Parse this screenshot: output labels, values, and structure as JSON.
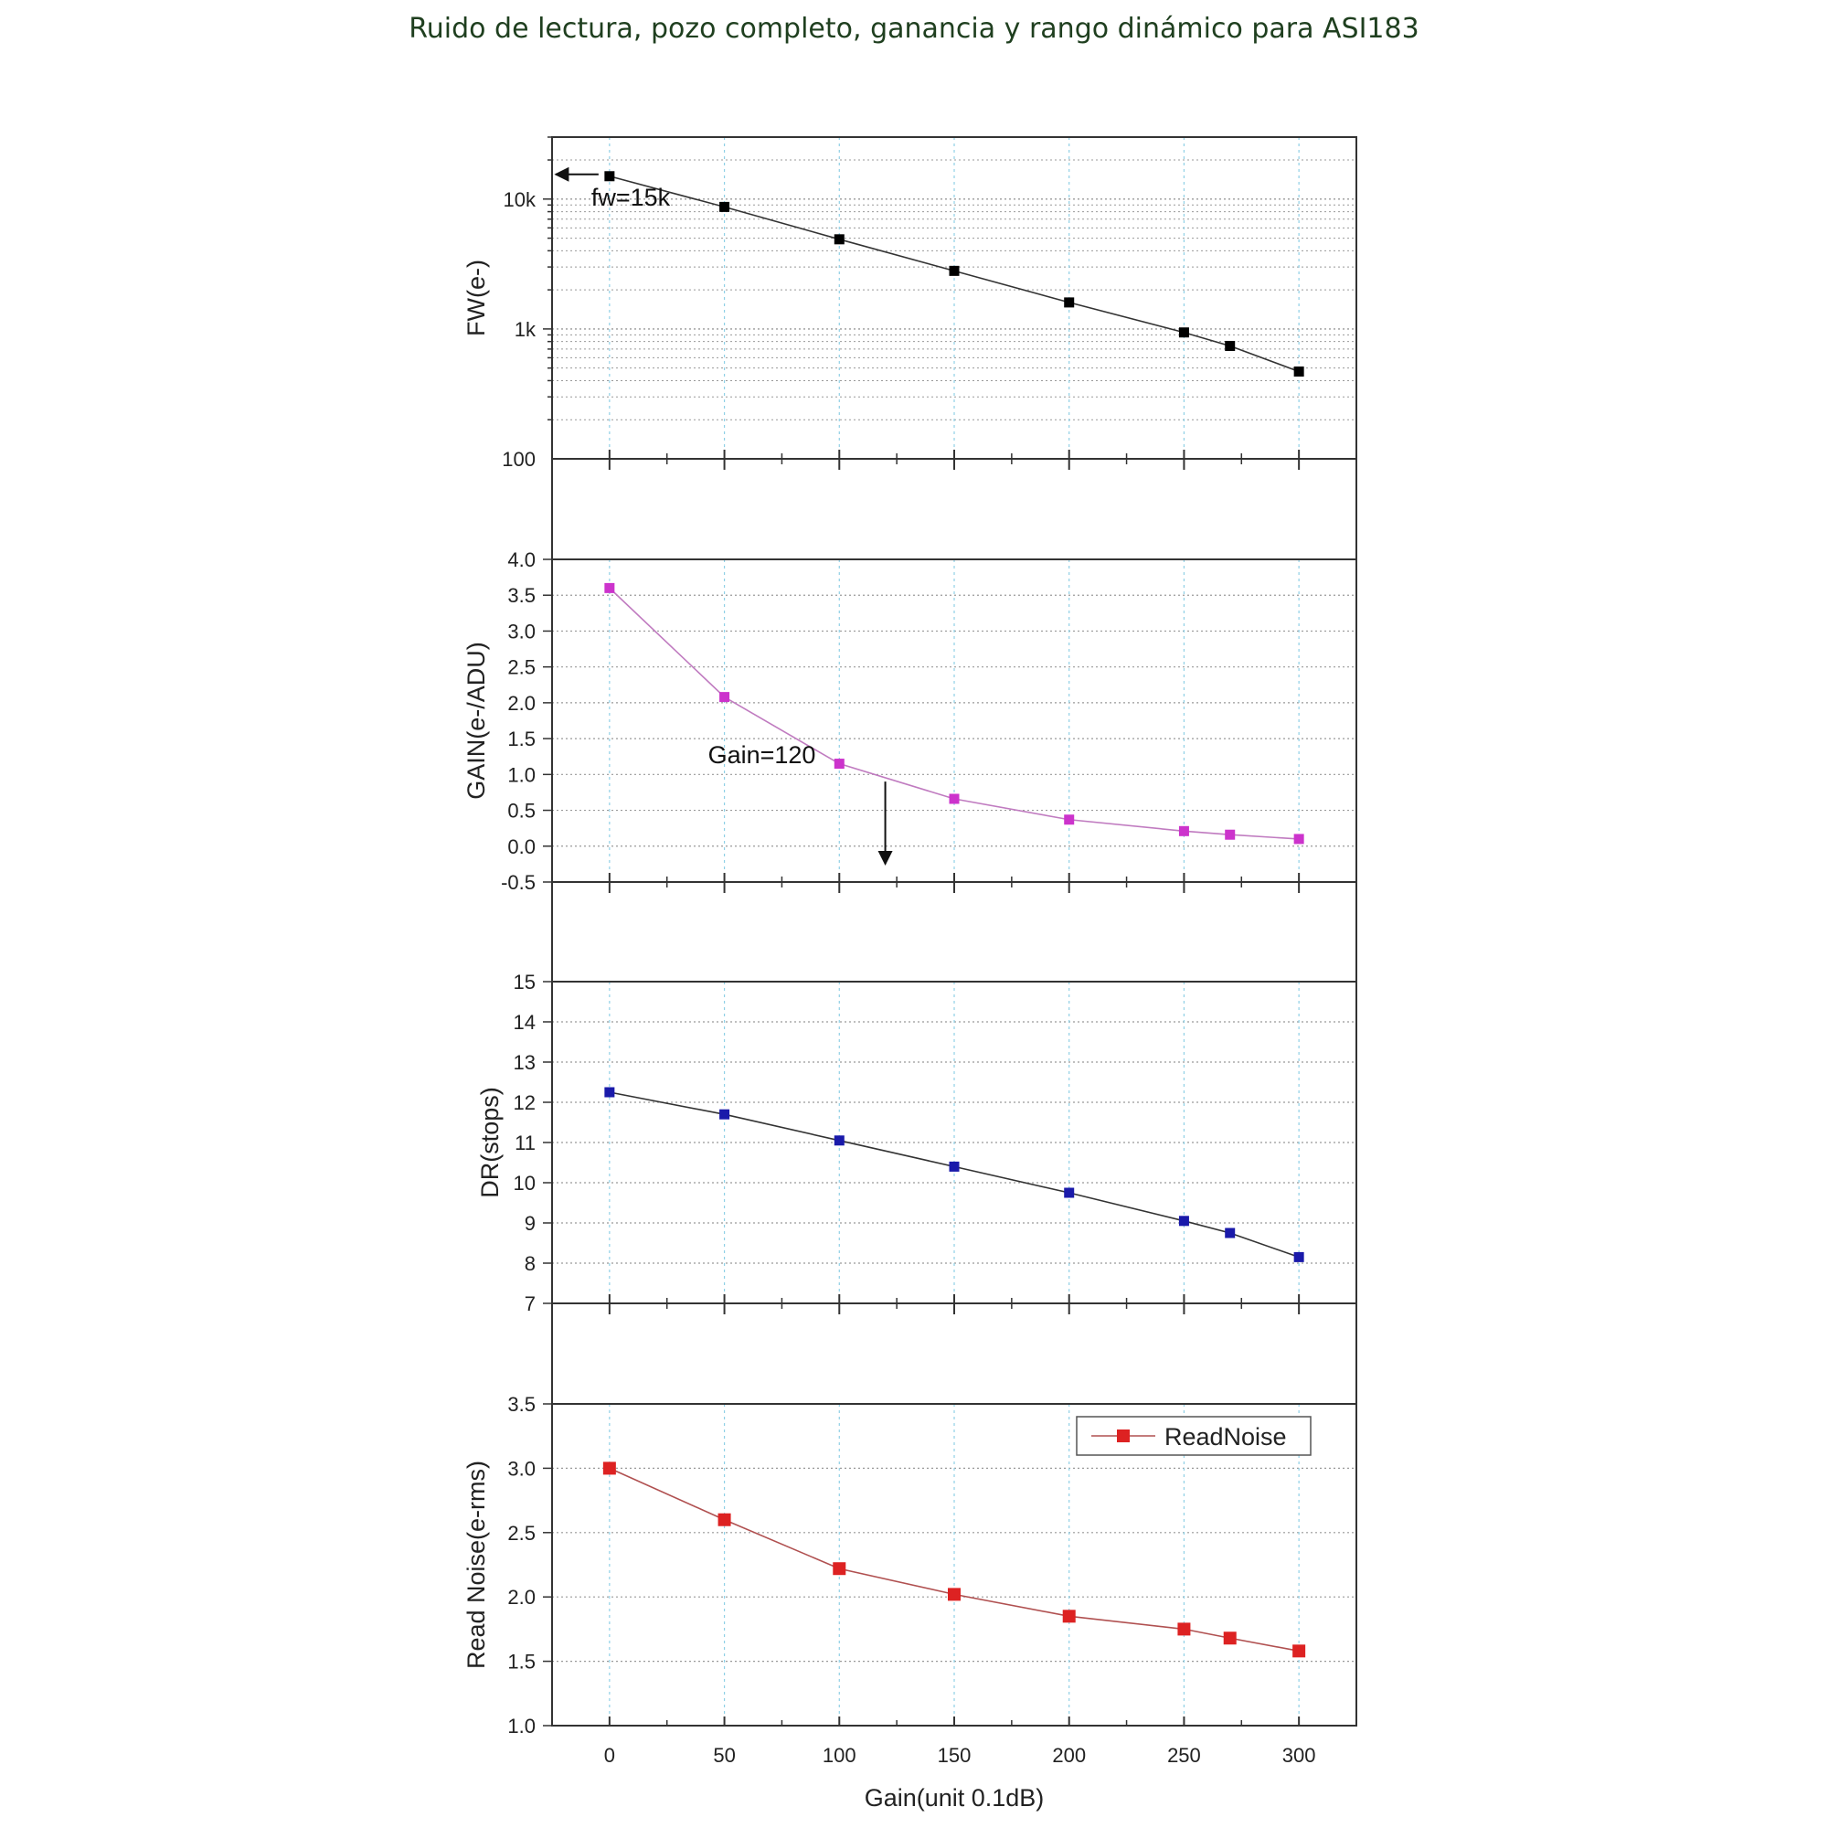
{
  "title": "Ruido de lectura, pozo completo, ganancia y rango dinámico para ASI183",
  "chart_data": {
    "type": "line",
    "x": [
      0,
      50,
      100,
      150,
      200,
      250,
      270,
      300
    ],
    "xlabel": "Gain(unit 0.1dB)",
    "xticks": [
      0,
      50,
      100,
      150,
      200,
      250,
      300
    ],
    "xlim": [
      -25,
      325
    ],
    "panels": [
      {
        "id": "fw",
        "ylabel": "FW(e-)",
        "scale": "log",
        "ylim": [
          100,
          30000
        ],
        "yticks": [
          100,
          1000,
          10000
        ],
        "ytick_labels": [
          "100",
          "1k",
          "10k"
        ],
        "color": "#000000",
        "series": [
          {
            "values": [
              15000,
              8700,
              4900,
              2800,
              1600,
              940,
              740,
              470
            ]
          }
        ],
        "annotation": {
          "text": "fw=15k",
          "x": 0,
          "y": 15000
        }
      },
      {
        "id": "gain",
        "ylabel": "GAIN(e-/ADU)",
        "scale": "linear",
        "ylim": [
          -0.5,
          4.0
        ],
        "yticks": [
          -0.5,
          0.0,
          0.5,
          1.0,
          1.5,
          2.0,
          2.5,
          3.0,
          3.5,
          4.0
        ],
        "ytick_labels": [
          "-0.5",
          "0.0",
          "0.5",
          "1.0",
          "1.5",
          "2.0",
          "2.5",
          "3.0",
          "3.5",
          "4.0"
        ],
        "color": "#cc33cc",
        "series": [
          {
            "values": [
              3.6,
              2.08,
              1.15,
              0.66,
              0.37,
              0.21,
              0.16,
              0.1
            ]
          }
        ],
        "annotation": {
          "text": "Gain=120",
          "x": 120,
          "y": 0.9
        }
      },
      {
        "id": "dr",
        "ylabel": "DR(stops)",
        "scale": "linear",
        "ylim": [
          7,
          15
        ],
        "yticks": [
          7,
          8,
          9,
          10,
          11,
          12,
          13,
          14,
          15
        ],
        "ytick_labels": [
          "7",
          "8",
          "9",
          "10",
          "11",
          "12",
          "13",
          "14",
          "15"
        ],
        "color": "#1a1aaa",
        "series": [
          {
            "values": [
              12.25,
              11.7,
              11.05,
              10.4,
              9.75,
              9.05,
              8.75,
              8.15
            ]
          }
        ]
      },
      {
        "id": "rn",
        "ylabel": "Read Noise(e-rms)",
        "scale": "linear",
        "ylim": [
          1.0,
          3.5
        ],
        "yticks": [
          1.0,
          1.5,
          2.0,
          2.5,
          3.0,
          3.5
        ],
        "ytick_labels": [
          "1.0",
          "1.5",
          "2.0",
          "2.5",
          "3.0",
          "3.5"
        ],
        "color": "#dd2222",
        "series": [
          {
            "name": "ReadNoise",
            "values": [
              3.0,
              2.6,
              2.22,
              2.02,
              1.85,
              1.75,
              1.68,
              1.58
            ]
          }
        ],
        "legend": "top-right"
      }
    ]
  }
}
